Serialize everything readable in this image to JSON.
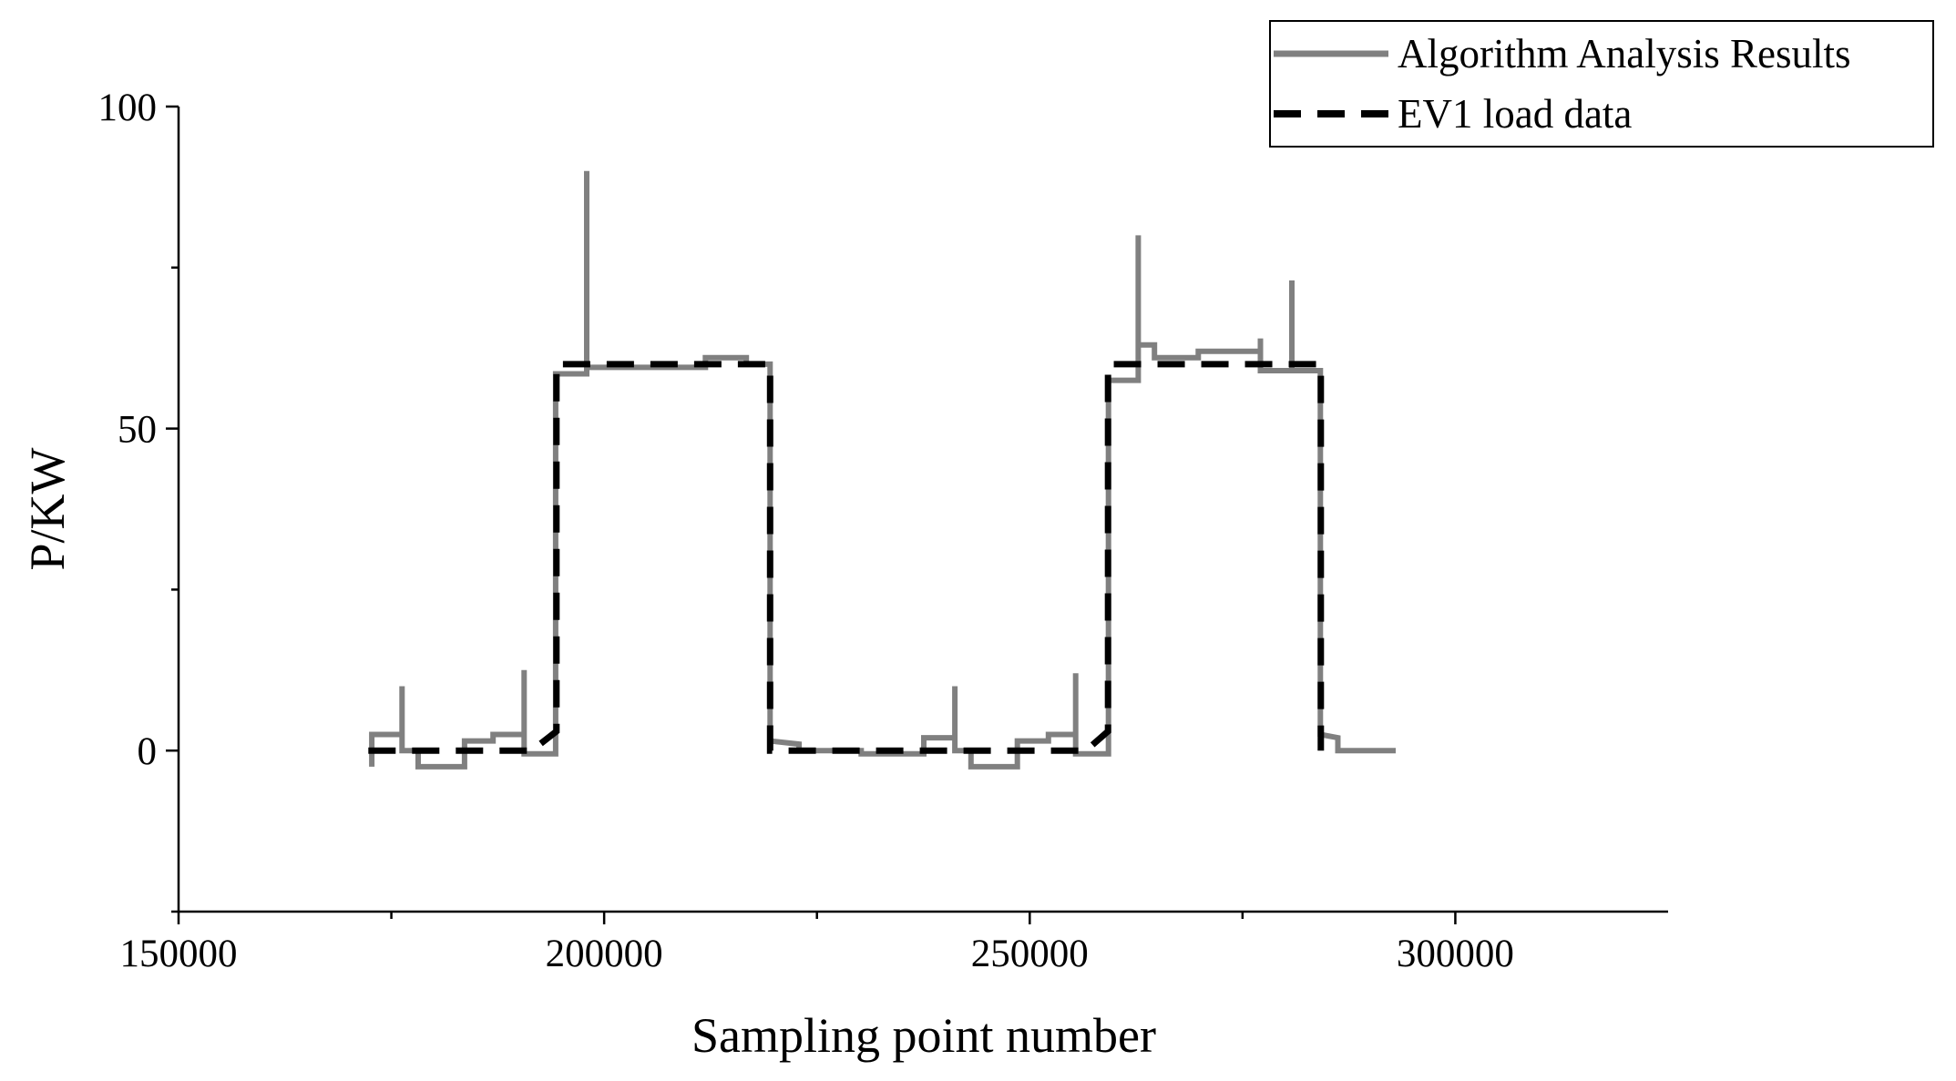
{
  "chart_data": {
    "type": "line",
    "xlabel": "Sampling point number",
    "ylabel": "P/KW",
    "xlim": [
      150000,
      325000
    ],
    "ylim": [
      -25,
      100
    ],
    "xticks": [
      150000,
      200000,
      250000,
      300000
    ],
    "yticks": [
      0,
      50,
      100
    ],
    "xminor_ticks": [
      175000,
      225000,
      275000
    ],
    "yminor_ticks": [
      -25,
      25,
      75
    ],
    "legend": "upper right",
    "series": [
      {
        "name": "Algorithm Analysis Results",
        "color": "#808080",
        "style": "solid",
        "x": [
          172700,
          172700,
          176250,
          176250,
          176250,
          178150,
          178150,
          183600,
          183600,
          186950,
          186950,
          190600,
          190600,
          190600,
          194300,
          194300,
          197950,
          197950,
          197950,
          211900,
          211900,
          216700,
          216700,
          219500,
          219500,
          222900,
          222900,
          230200,
          230200,
          237550,
          237550,
          241200,
          241200,
          241200,
          243100,
          243100,
          248550,
          248550,
          252200,
          252200,
          255400,
          255400,
          255400,
          259250,
          259250,
          262750,
          262750,
          262750,
          264650,
          264650,
          269800,
          269800,
          277100,
          277100,
          277100,
          280800,
          280800,
          280800,
          284150,
          284150,
          286200,
          286200,
          293000
        ],
        "values": [
          -2.5,
          2.5,
          2.5,
          10,
          0,
          0,
          -2.5,
          -2.5,
          1.5,
          1.5,
          2.5,
          2.5,
          12.5,
          -0.5,
          -0.5,
          58.5,
          58.5,
          90,
          59.5,
          59.5,
          61,
          61,
          60,
          60,
          1.5,
          1,
          0,
          0,
          -0.5,
          -0.5,
          2,
          2,
          10,
          0,
          0,
          -2.5,
          -2.5,
          1.5,
          1.5,
          2.5,
          2.5,
          12,
          -0.5,
          -0.5,
          57.5,
          57.5,
          80,
          63,
          63,
          61,
          61,
          62,
          62,
          64,
          59,
          59,
          73,
          59,
          59,
          2.5,
          2,
          0,
          0
        ]
      },
      {
        "name": "EV1 load data",
        "color": "#000000",
        "style": "dashed",
        "x": [
          172300,
          191500,
          194400,
          194400,
          219500,
          219500,
          256600,
          259200,
          259200,
          284200,
          284200
        ],
        "values": [
          0,
          0,
          3,
          60,
          60,
          0,
          0,
          3,
          60,
          60,
          0
        ]
      }
    ]
  }
}
